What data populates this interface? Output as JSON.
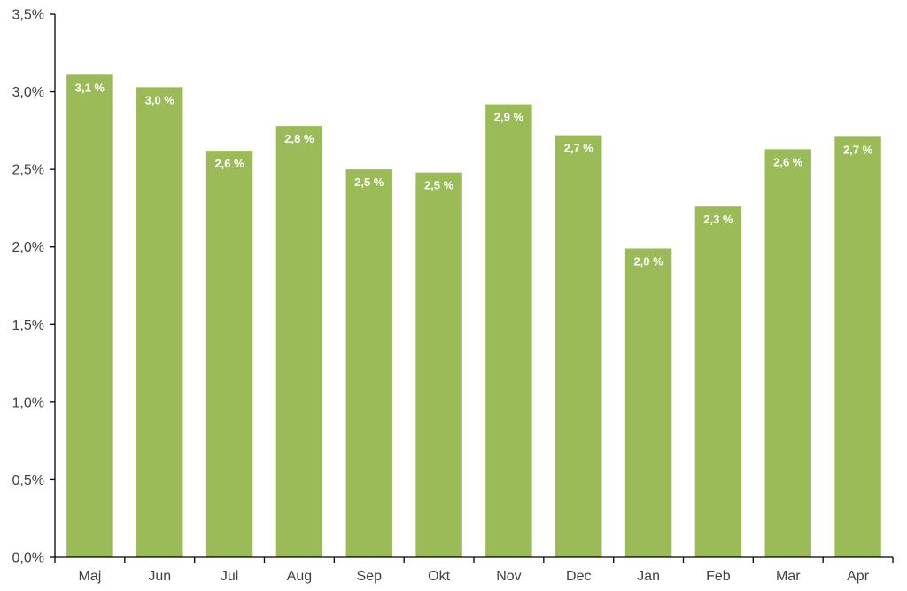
{
  "chart_data": {
    "type": "bar",
    "categories": [
      "Maj",
      "Jun",
      "Jul",
      "Aug",
      "Sep",
      "Okt",
      "Nov",
      "Dec",
      "Jan",
      "Feb",
      "Mar",
      "Apr"
    ],
    "values": [
      3.11,
      3.03,
      2.62,
      2.78,
      2.5,
      2.48,
      2.92,
      2.72,
      1.99,
      2.26,
      2.63,
      2.71
    ],
    "data_labels": [
      "3,1 %",
      "3,0 %",
      "2,6 %",
      "2,8 %",
      "2,5 %",
      "2,5 %",
      "2,9 %",
      "2,7 %",
      "2,0 %",
      "2,3 %",
      "2,6 %",
      "2,7 %"
    ],
    "y_ticks": [
      0,
      0.5,
      1.0,
      1.5,
      2.0,
      2.5,
      3.0,
      3.5
    ],
    "y_tick_labels": [
      "0,0%",
      "0,5%",
      "1,0%",
      "1,5%",
      "2,0%",
      "2,5%",
      "3,0%",
      "3,5%"
    ],
    "ylim": [
      0,
      3.5
    ],
    "title": "",
    "xlabel": "",
    "ylabel": "",
    "grid": false,
    "bar_color": "#9bbb59"
  }
}
